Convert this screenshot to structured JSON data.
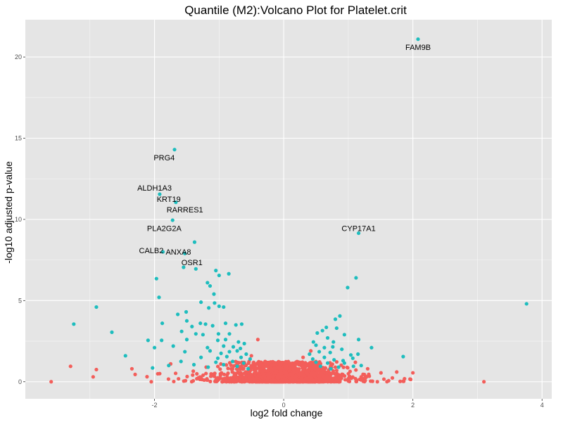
{
  "chart_data": {
    "type": "scatter",
    "title": "Quantile (M2):Volcano Plot for Platelet.crit",
    "xlabel": "log2 fold change",
    "ylabel": "-log10 adjusted p-value",
    "xlim": [
      -4.0,
      4.15
    ],
    "ylim": [
      -1.05,
      22.3
    ],
    "x_ticks": [
      -2,
      0,
      2,
      4
    ],
    "x_tick_labels": [
      "-2",
      "0",
      "2",
      "4"
    ],
    "y_ticks": [
      0,
      5,
      10,
      15,
      20
    ],
    "y_tick_labels": [
      "0",
      "5",
      "10",
      "15",
      "20"
    ],
    "grid": true,
    "legend": "none",
    "colors": {
      "panel": "#e5e5e5",
      "grid": "#ffffff",
      "significant": "#1ebdbe",
      "not_significant": "#f35e5a"
    },
    "series": [
      {
        "color_key": "significant",
        "points": [
          [
            2.08,
            21.1
          ],
          [
            -1.69,
            14.3
          ],
          [
            -1.92,
            11.55
          ],
          [
            -1.67,
            11.05
          ],
          [
            -1.72,
            9.95
          ],
          [
            1.16,
            9.15
          ],
          [
            -1.38,
            8.6
          ],
          [
            -1.87,
            8.0
          ],
          [
            -1.53,
            7.9
          ],
          [
            -1.55,
            7.05
          ],
          [
            -1.36,
            6.95
          ],
          [
            -1.05,
            6.85
          ],
          [
            -1.0,
            6.55
          ],
          [
            -0.85,
            6.65
          ],
          [
            1.12,
            6.4
          ],
          [
            -1.97,
            6.35
          ],
          [
            -1.18,
            6.1
          ],
          [
            -1.14,
            5.9
          ],
          [
            -1.08,
            5.4
          ],
          [
            0.99,
            5.8
          ],
          [
            -1.93,
            5.2
          ],
          [
            3.76,
            4.8
          ],
          [
            -2.9,
            4.6
          ],
          [
            -1.07,
            4.85
          ],
          [
            -1.28,
            4.9
          ],
          [
            -1.0,
            4.65
          ],
          [
            -0.93,
            4.6
          ],
          [
            -1.16,
            4.55
          ],
          [
            -1.51,
            4.3
          ],
          [
            -1.64,
            4.15
          ],
          [
            0.87,
            4.05
          ],
          [
            0.8,
            3.85
          ],
          [
            -3.25,
            3.55
          ],
          [
            -1.88,
            3.6
          ],
          [
            -1.5,
            3.75
          ],
          [
            -1.42,
            3.4
          ],
          [
            -1.29,
            3.6
          ],
          [
            -1.21,
            3.55
          ],
          [
            -1.1,
            3.45
          ],
          [
            -0.9,
            3.6
          ],
          [
            -0.74,
            3.5
          ],
          [
            -0.65,
            3.55
          ],
          [
            0.66,
            3.35
          ],
          [
            0.82,
            3.3
          ],
          [
            -2.66,
            3.05
          ],
          [
            -1.58,
            3.1
          ],
          [
            -1.36,
            2.95
          ],
          [
            -1.25,
            2.9
          ],
          [
            -1.01,
            2.95
          ],
          [
            -0.84,
            2.95
          ],
          [
            0.52,
            3.0
          ],
          [
            0.6,
            3.15
          ],
          [
            0.94,
            2.9
          ],
          [
            1.16,
            2.6
          ],
          [
            -2.1,
            2.55
          ],
          [
            -1.89,
            2.55
          ],
          [
            -1.5,
            2.6
          ],
          [
            -1.02,
            2.55
          ],
          [
            -0.9,
            2.6
          ],
          [
            -0.7,
            2.45
          ],
          [
            -0.61,
            2.35
          ],
          [
            0.46,
            2.45
          ],
          [
            0.68,
            2.7
          ],
          [
            0.77,
            2.45
          ],
          [
            -2.0,
            2.1
          ],
          [
            -1.71,
            2.2
          ],
          [
            -1.18,
            2.1
          ],
          [
            -0.93,
            2.2
          ],
          [
            -0.78,
            2.15
          ],
          [
            -0.67,
            2.05
          ],
          [
            0.5,
            2.25
          ],
          [
            0.63,
            2.1
          ],
          [
            0.76,
            2.15
          ],
          [
            0.9,
            2.0
          ],
          [
            1.36,
            2.1
          ],
          [
            -2.45,
            1.6
          ],
          [
            -1.53,
            1.85
          ],
          [
            -1.14,
            1.9
          ],
          [
            -0.97,
            1.75
          ],
          [
            -0.84,
            1.85
          ],
          [
            -0.72,
            1.9
          ],
          [
            -0.58,
            1.7
          ],
          [
            0.4,
            1.7
          ],
          [
            0.55,
            1.85
          ],
          [
            0.72,
            1.8
          ],
          [
            1.04,
            1.65
          ],
          [
            1.15,
            1.7
          ],
          [
            1.85,
            1.55
          ],
          [
            -1.28,
            1.5
          ],
          [
            -1.02,
            1.45
          ],
          [
            -0.88,
            1.55
          ],
          [
            -0.66,
            1.5
          ],
          [
            -0.52,
            1.4
          ],
          [
            0.45,
            1.4
          ],
          [
            0.63,
            1.5
          ],
          [
            0.78,
            1.35
          ],
          [
            0.92,
            1.3
          ],
          [
            1.07,
            1.45
          ],
          [
            -1.59,
            1.25
          ],
          [
            -1.05,
            1.2
          ],
          [
            -0.79,
            1.25
          ],
          [
            -0.62,
            1.15
          ],
          [
            0.5,
            1.2
          ],
          [
            0.68,
            1.15
          ],
          [
            0.94,
            1.15
          ],
          [
            1.2,
            1.0
          ],
          [
            -1.78,
            1.0
          ],
          [
            -1.39,
            1.05
          ],
          [
            -0.93,
            1.05
          ],
          [
            -0.72,
            0.95
          ],
          [
            0.57,
            0.95
          ],
          [
            0.85,
            0.9
          ],
          [
            1.08,
            0.95
          ],
          [
            -2.03,
            0.85
          ],
          [
            -1.17,
            0.9
          ],
          [
            0.73,
            0.8
          ],
          [
            -0.55,
            0.8
          ]
        ]
      },
      {
        "color_key": "not_significant",
        "points": [
          [
            -3.6,
            0.0
          ],
          [
            -3.3,
            0.95
          ],
          [
            -2.95,
            0.3
          ],
          [
            -2.9,
            0.75
          ],
          [
            -2.35,
            0.8
          ],
          [
            -2.3,
            0.45
          ],
          [
            -2.05,
            0.0
          ],
          [
            -1.92,
            0.5
          ],
          [
            -1.75,
            1.1
          ],
          [
            -1.4,
            0.65
          ],
          [
            -1.3,
            0.25
          ],
          [
            -1.2,
            0.9
          ],
          [
            -1.05,
            0.1
          ],
          [
            1.3,
            0.8
          ],
          [
            1.2,
            0.3
          ],
          [
            1.45,
            0.0
          ],
          [
            1.75,
            0.6
          ],
          [
            2.0,
            0.55
          ],
          [
            3.1,
            0.0
          ],
          [
            -0.4,
            2.6
          ],
          [
            0.42,
            1.9
          ],
          [
            -0.5,
            1.6
          ],
          [
            0.3,
            1.5
          ],
          [
            -0.35,
            1.2
          ],
          [
            0.35,
            1.1
          ]
        ],
        "clusters": [
          {
            "x_mean": 0.0,
            "x_sd": 0.42,
            "y_max": 1.25,
            "y_power": 2.2,
            "n": 1300
          },
          {
            "x_mean": 0.0,
            "x_sd": 0.75,
            "y_max": 0.55,
            "y_power": 1.6,
            "n": 350
          }
        ]
      }
    ],
    "annotations": [
      {
        "text": "FAM9B",
        "x": 2.08,
        "y": 20.6
      },
      {
        "text": "PRG4",
        "x": -1.85,
        "y": 13.8
      },
      {
        "text": "ALDH1A3",
        "x": -2.0,
        "y": 11.95
      },
      {
        "text": "KRT19",
        "x": -1.78,
        "y": 11.25
      },
      {
        "text": "RARRES1",
        "x": -1.53,
        "y": 10.6
      },
      {
        "text": "PLA2G2A",
        "x": -1.85,
        "y": 9.45
      },
      {
        "text": "CYP17A1",
        "x": 1.16,
        "y": 9.45
      },
      {
        "text": "CALB2",
        "x": -2.05,
        "y": 8.1
      },
      {
        "text": "ANXA8",
        "x": -1.63,
        "y": 8.0
      },
      {
        "text": "OSR1",
        "x": -1.42,
        "y": 7.35
      }
    ]
  }
}
